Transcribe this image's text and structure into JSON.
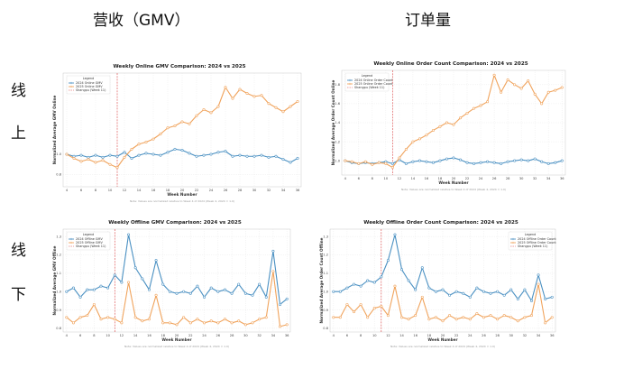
{
  "headers": {
    "col1": "营收（GMV）",
    "col2": "订单量",
    "row1_a": "线",
    "row1_b": "上",
    "row2_a": "线",
    "row2_b": "下"
  },
  "colors": {
    "s2024": "#4a90c2",
    "s2025": "#f0a35c",
    "event": "#d94040"
  },
  "chart_data": [
    {
      "type": "line",
      "title": "Weekly Online GMV Comparison: 2024 vs 2025",
      "xlabel": "Week Number",
      "ylabel": "Normalized Average GMV Online",
      "x_ticks": [
        4,
        6,
        8,
        10,
        12,
        14,
        16,
        18,
        20,
        22,
        24,
        26,
        28,
        30,
        32,
        34,
        36
      ],
      "y_ticks": [
        0.8,
        1.0
      ],
      "ylim": [
        0.68,
        1.8
      ],
      "legend_title": "Legend",
      "legend_placement": "top-left",
      "note": "Note: Values are normalized relative to Week 4 of 2024 (Week 4, 2024 = 1.0)",
      "event": {
        "week": 11,
        "label": "Shangpu (Week 11)"
      },
      "x": [
        4,
        5,
        6,
        7,
        8,
        9,
        10,
        11,
        12,
        13,
        14,
        15,
        16,
        17,
        18,
        19,
        20,
        21,
        22,
        23,
        24,
        25,
        26,
        27,
        28,
        29,
        30,
        31,
        32,
        33,
        34,
        35,
        36
      ],
      "series": [
        {
          "name": "2024 Online GMV",
          "color": "#4a90c2",
          "values": [
            1.0,
            0.98,
            0.99,
            0.97,
            0.99,
            0.97,
            0.99,
            0.98,
            1.02,
            0.96,
            0.99,
            1.01,
            1.0,
            0.99,
            1.02,
            1.05,
            1.04,
            1.01,
            0.98,
            0.99,
            1.0,
            1.02,
            1.03,
            0.98,
            0.99,
            0.98,
            0.98,
            0.99,
            0.97,
            0.98,
            0.95,
            0.92,
            0.96
          ]
        },
        {
          "name": "2025 Online GMV",
          "color": "#f0a35c",
          "values": [
            1.0,
            0.96,
            0.93,
            0.95,
            0.92,
            0.94,
            0.9,
            0.87,
            0.97,
            1.05,
            1.1,
            1.12,
            1.15,
            1.2,
            1.26,
            1.28,
            1.32,
            1.3,
            1.38,
            1.44,
            1.41,
            1.47,
            1.66,
            1.55,
            1.64,
            1.6,
            1.57,
            1.58,
            1.5,
            1.46,
            1.42,
            1.47,
            1.52
          ]
        }
      ]
    },
    {
      "type": "line",
      "title": "Weekly Online Order Count Comparison: 2024 vs 2025",
      "xlabel": "Week Number",
      "ylabel": "Normalized Average Order Count Online",
      "x_ticks": [
        4,
        6,
        8,
        10,
        12,
        14,
        16,
        18,
        20,
        22,
        24,
        26,
        28,
        30,
        32,
        34,
        36
      ],
      "y_ticks": [
        1.0,
        1.2,
        1.4,
        1.6,
        1.8
      ],
      "ylim": [
        0.85,
        1.95
      ],
      "legend_title": "Legend",
      "legend_placement": "top-left",
      "note": "Note: Values are normalized relative to Week 4 of 2024 (Week 4, 2024 = 1.0)",
      "event": {
        "week": 11,
        "label": "Shangpu (Week 11)"
      },
      "x": [
        4,
        5,
        6,
        7,
        8,
        9,
        10,
        11,
        12,
        13,
        14,
        15,
        16,
        17,
        18,
        19,
        20,
        21,
        22,
        23,
        24,
        25,
        26,
        27,
        28,
        29,
        30,
        31,
        32,
        33,
        34,
        35,
        36
      ],
      "series": [
        {
          "name": "2024 Online Order Count",
          "color": "#4a90c2",
          "values": [
            1.0,
            0.98,
            0.97,
            0.98,
            0.97,
            0.98,
            0.99,
            0.97,
            1.01,
            0.97,
            0.99,
            1.0,
            0.99,
            0.98,
            1.0,
            1.02,
            1.03,
            1.01,
            0.98,
            0.97,
            0.98,
            0.99,
            0.98,
            0.97,
            0.99,
            1.0,
            1.01,
            1.0,
            1.02,
            0.99,
            0.97,
            0.98,
            1.0
          ]
        },
        {
          "name": "2025 Online Order Count",
          "color": "#f0a35c",
          "values": [
            1.0,
            0.99,
            0.97,
            0.99,
            0.96,
            0.98,
            0.97,
            0.93,
            1.03,
            1.12,
            1.2,
            1.23,
            1.27,
            1.32,
            1.36,
            1.4,
            1.38,
            1.45,
            1.5,
            1.55,
            1.58,
            1.62,
            1.9,
            1.72,
            1.85,
            1.8,
            1.76,
            1.84,
            1.7,
            1.6,
            1.72,
            1.74,
            1.77
          ]
        }
      ]
    },
    {
      "type": "line",
      "title": "Weekly Offline GMV Comparison: 2024 vs 2025",
      "xlabel": "Week Number",
      "ylabel": "Normalized Average GMV Offline",
      "x_ticks": [
        4,
        6,
        8,
        10,
        12,
        14,
        16,
        18,
        20,
        22,
        24,
        26,
        28,
        30,
        32,
        34,
        36
      ],
      "y_ticks": [
        0.8,
        0.9,
        1.0,
        1.1,
        1.2,
        1.3
      ],
      "ylim": [
        0.78,
        1.34
      ],
      "legend_title": "Legend",
      "legend_placement": "top-left",
      "note": "Note: Values are normalized relative to Week 4 of 2024 (Week 4, 2024 = 1.0)",
      "event": {
        "week": 11,
        "label": "Shangpu (Week 11)"
      },
      "x": [
        4,
        5,
        6,
        7,
        8,
        9,
        10,
        11,
        12,
        13,
        14,
        15,
        16,
        17,
        18,
        19,
        20,
        21,
        22,
        23,
        24,
        25,
        26,
        27,
        28,
        29,
        30,
        31,
        32,
        33,
        34,
        35,
        36
      ],
      "series": [
        {
          "name": "2024 Offline GMV",
          "color": "#4a90c2",
          "values": [
            1.0,
            1.02,
            0.97,
            1.01,
            1.01,
            1.03,
            1.02,
            1.09,
            1.05,
            1.31,
            1.13,
            1.07,
            1.01,
            1.17,
            1.04,
            1.0,
            0.99,
            1.0,
            0.99,
            1.03,
            0.97,
            1.02,
            1.0,
            1.01,
            0.99,
            1.04,
            0.99,
            0.98,
            1.04,
            0.97,
            1.22,
            0.93,
            0.96
          ]
        },
        {
          "name": "2025 Offline GMV",
          "color": "#f0a35c",
          "values": [
            0.86,
            0.83,
            0.86,
            0.87,
            0.93,
            0.85,
            0.86,
            0.85,
            0.83,
            1.05,
            0.86,
            0.84,
            0.85,
            0.98,
            0.83,
            0.83,
            0.82,
            0.86,
            0.83,
            0.85,
            0.83,
            0.84,
            0.83,
            0.85,
            0.83,
            0.84,
            0.82,
            0.83,
            0.85,
            0.86,
            1.11,
            0.81,
            0.82
          ]
        }
      ]
    },
    {
      "type": "line",
      "title": "Weekly Offline Order Count Comparison: 2024 vs 2025",
      "xlabel": "Week Number",
      "ylabel": "Normalized Average Order Count Offline",
      "x_ticks": [
        4,
        6,
        8,
        10,
        12,
        14,
        16,
        18,
        20,
        22,
        24,
        26,
        28,
        30,
        32,
        34,
        36
      ],
      "y_ticks": [
        0.8,
        0.9,
        1.0,
        1.1,
        1.2,
        1.3
      ],
      "ylim": [
        0.78,
        1.34
      ],
      "legend_title": "Legend",
      "legend_placement": "top-right",
      "note": "Note: Values are normalized relative to Week 4 of 2024 (Week 4, 2024 = 1.0)",
      "event": {
        "week": 11,
        "label": "Shangpu (Week 11)"
      },
      "x": [
        4,
        5,
        6,
        7,
        8,
        9,
        10,
        11,
        12,
        13,
        14,
        15,
        16,
        17,
        18,
        19,
        20,
        21,
        22,
        23,
        24,
        25,
        26,
        27,
        28,
        29,
        30,
        31,
        32,
        33,
        34,
        35,
        36
      ],
      "series": [
        {
          "name": "2024 Offline Order Count",
          "color": "#4a90c2",
          "values": [
            1.0,
            1.0,
            1.02,
            1.04,
            1.03,
            1.06,
            1.05,
            1.08,
            1.17,
            1.31,
            1.12,
            1.06,
            1.01,
            1.13,
            1.02,
            1.0,
            1.01,
            0.98,
            1.0,
            0.99,
            0.97,
            1.02,
            1.0,
            0.99,
            1.0,
            0.98,
            1.01,
            0.96,
            1.01,
            0.95,
            1.09,
            0.96,
            0.97
          ]
        },
        {
          "name": "2025 Offline Order Count",
          "color": "#f0a35c",
          "values": [
            0.86,
            0.86,
            0.93,
            0.89,
            0.93,
            0.86,
            0.91,
            0.92,
            0.87,
            1.03,
            0.86,
            0.85,
            0.87,
            0.97,
            0.85,
            0.86,
            0.84,
            0.87,
            0.85,
            0.86,
            0.85,
            0.88,
            0.86,
            0.87,
            0.85,
            0.87,
            0.86,
            0.84,
            0.86,
            0.87,
            1.04,
            0.83,
            0.86
          ]
        }
      ]
    }
  ]
}
